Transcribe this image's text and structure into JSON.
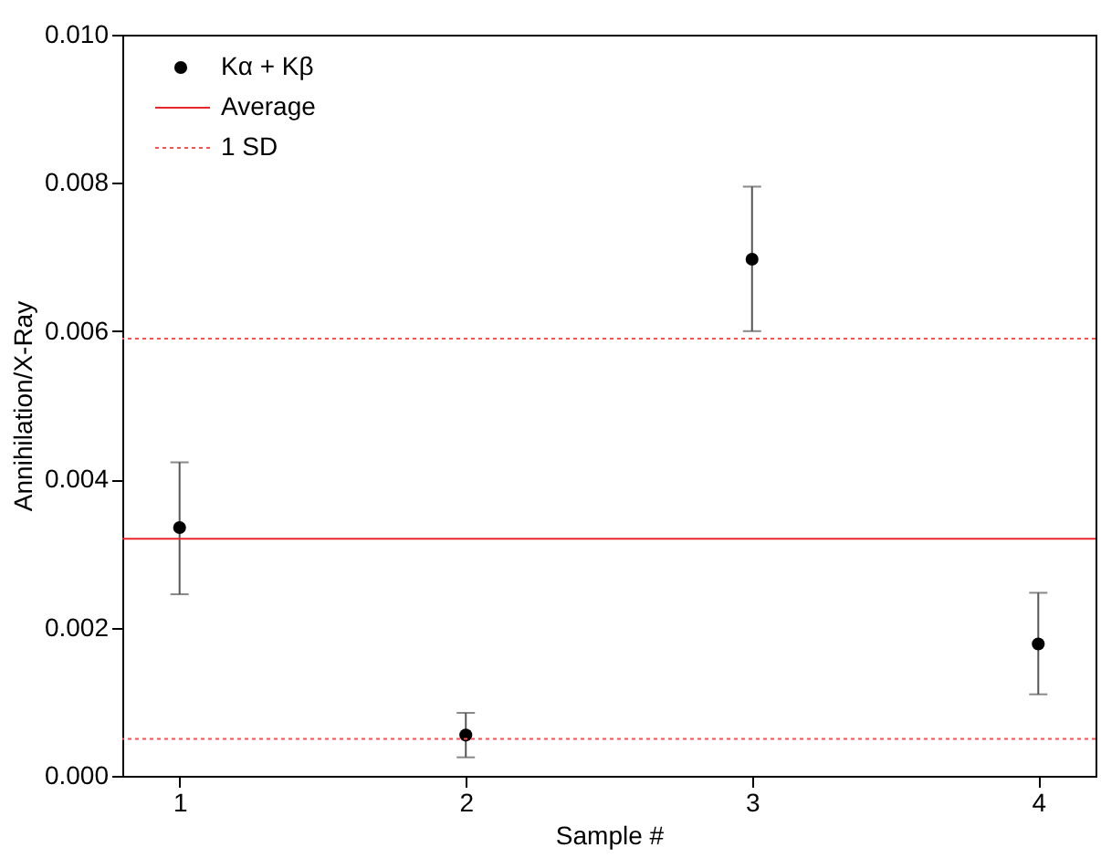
{
  "chart_data": {
    "type": "scatter",
    "xlabel": "Sample #",
    "ylabel": "Annihilation/X-Ray",
    "x": [
      1,
      2,
      3,
      4
    ],
    "series": [
      {
        "name": "Kα + Kβ",
        "color": "#000000",
        "values": [
          0.00335,
          0.00055,
          0.00697,
          0.00178
        ],
        "errors": [
          [
            0.00245,
            0.00423
          ],
          [
            0.00025,
            0.00085
          ],
          [
            0.006,
            0.00795
          ],
          [
            0.0011,
            0.00247
          ]
        ]
      }
    ],
    "xlim": [
      0.8,
      4.2
    ],
    "xticks": [
      1,
      2,
      3,
      4
    ],
    "ylim": [
      0,
      0.01
    ],
    "yticks": [
      {
        "value": 0,
        "label": "0.000"
      },
      {
        "value": 0.002,
        "label": "0.002"
      },
      {
        "value": 0.004,
        "label": "0.004"
      },
      {
        "value": 0.006,
        "label": "0.006"
      },
      {
        "value": 0.008,
        "label": "0.008"
      },
      {
        "value": 0.01,
        "label": "0.010"
      }
    ],
    "ref_lines": [
      {
        "axis": "y",
        "value": 0.0032,
        "label": "Average",
        "color": "#e8262b",
        "line_style": "solid"
      },
      {
        "axis": "y",
        "value": 0.0059,
        "label": "1 SD",
        "color": "#ff5050",
        "line_style": "dotted"
      },
      {
        "axis": "y",
        "value": 0.0005,
        "color": "#ff5050",
        "line_style": "dotted"
      }
    ],
    "marker": "circle",
    "legend": "top left"
  }
}
